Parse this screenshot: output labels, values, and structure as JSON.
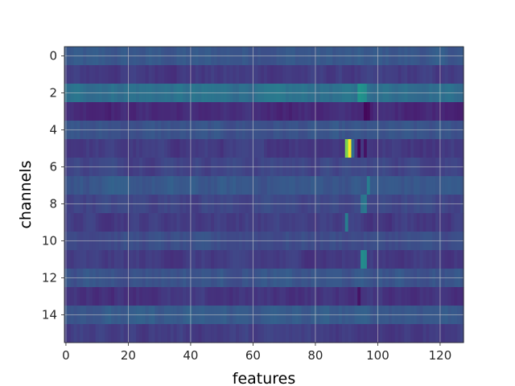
{
  "chart_data": {
    "type": "heatmap",
    "title": "",
    "xlabel": "features",
    "ylabel": "channels",
    "rows": 16,
    "cols": 128,
    "x_range": [
      -0.5,
      127.5
    ],
    "y_range": [
      -0.5,
      15.5
    ],
    "y_inverted": true,
    "x_ticks": [
      0,
      20,
      40,
      60,
      80,
      100,
      120
    ],
    "y_ticks": [
      0,
      2,
      4,
      6,
      8,
      10,
      12,
      14
    ],
    "grid": true,
    "colormap": "viridis",
    "value_range": [
      0,
      1
    ],
    "row_levels": [
      0.27,
      0.17,
      0.37,
      0.12,
      0.25,
      0.17,
      0.21,
      0.27,
      0.21,
      0.18,
      0.23,
      0.17,
      0.26,
      0.15,
      0.28,
      0.18
    ],
    "highlights": [
      {
        "row": 5,
        "col": 90,
        "value": 0.8
      },
      {
        "row": 5,
        "col": 91,
        "value": 1.0
      },
      {
        "row": 5,
        "col": 92,
        "value": 0.35
      },
      {
        "row": 2,
        "col": 94,
        "value": 0.52
      },
      {
        "row": 2,
        "col": 95,
        "value": 0.5
      },
      {
        "row": 2,
        "col": 96,
        "value": 0.48
      },
      {
        "row": 11,
        "col": 95,
        "value": 0.48
      },
      {
        "row": 11,
        "col": 96,
        "value": 0.46
      },
      {
        "row": 3,
        "col": 96,
        "value": 0.02
      },
      {
        "row": 3,
        "col": 97,
        "value": 0.03
      },
      {
        "row": 7,
        "col": 97,
        "value": 0.42
      },
      {
        "row": 8,
        "col": 95,
        "value": 0.38
      },
      {
        "row": 8,
        "col": 96,
        "value": 0.4
      },
      {
        "row": 9,
        "col": 90,
        "value": 0.42
      },
      {
        "row": 5,
        "col": 94,
        "value": 0.02
      },
      {
        "row": 5,
        "col": 96,
        "value": 0.05
      },
      {
        "row": 13,
        "col": 94,
        "value": 0.05
      }
    ]
  }
}
